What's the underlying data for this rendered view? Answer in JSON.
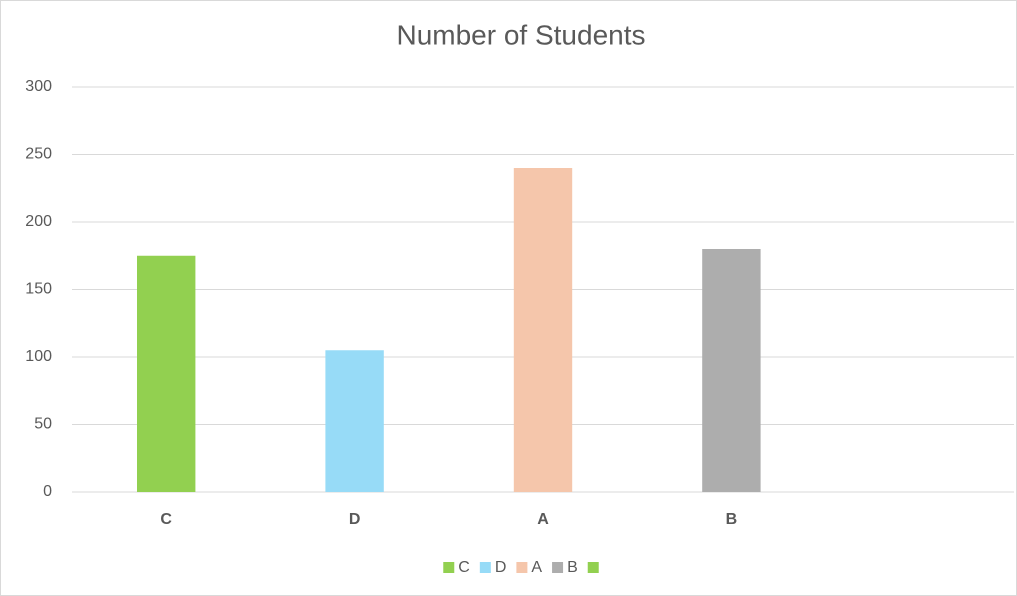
{
  "chart_data": {
    "type": "bar",
    "title": "Number of Students",
    "categories": [
      "C",
      "D",
      "A",
      "B",
      null
    ],
    "values": [
      175,
      105,
      240,
      180,
      null
    ],
    "colors": [
      "#92d050",
      "#97dbf7",
      "#f5c6ab",
      "#adadad",
      "#92d050"
    ],
    "ylim": [
      0,
      300
    ],
    "yticks": [
      0,
      50,
      100,
      150,
      200,
      250,
      300
    ],
    "grid": true,
    "legend": "bottom"
  }
}
